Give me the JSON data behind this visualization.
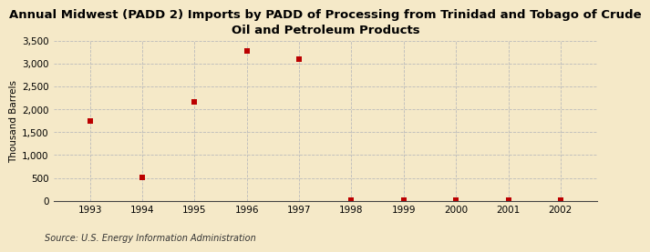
{
  "title": "Annual Midwest (PADD 2) Imports by PADD of Processing from Trinidad and Tobago of Crude\nOil and Petroleum Products",
  "ylabel": "Thousand Barrels",
  "source": "Source: U.S. Energy Information Administration",
  "background_color": "#f5e9c8",
  "plot_bg_color": "#f5e9c8",
  "years": [
    1993,
    1994,
    1995,
    1996,
    1997,
    1998,
    1999,
    2000,
    2001,
    2002
  ],
  "values": [
    1750,
    520,
    2160,
    3290,
    3100,
    5,
    4,
    5,
    4,
    3
  ],
  "xlim": [
    1992.3,
    2002.7
  ],
  "ylim": [
    0,
    3500
  ],
  "yticks": [
    0,
    500,
    1000,
    1500,
    2000,
    2500,
    3000,
    3500
  ],
  "xticks": [
    1993,
    1994,
    1995,
    1996,
    1997,
    1998,
    1999,
    2000,
    2001,
    2002
  ],
  "marker_color": "#bb0000",
  "marker_size": 4,
  "grid_color": "#bbbbbb",
  "title_fontsize": 9.5,
  "axis_label_fontsize": 7.5,
  "tick_fontsize": 7.5,
  "source_fontsize": 7
}
